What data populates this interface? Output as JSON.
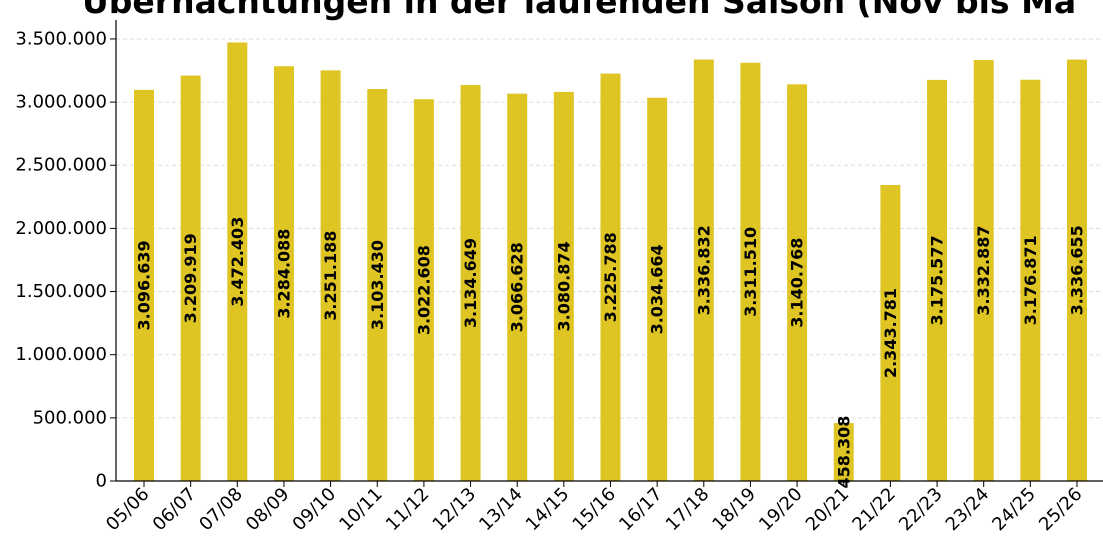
{
  "chart_data": {
    "type": "bar",
    "title": "Übernachtungen in der laufenden Saison (Nov bis Ma",
    "xlabel": "",
    "ylabel": "",
    "categories": [
      "05/06",
      "06/07",
      "07/08",
      "08/09",
      "09/10",
      "10/11",
      "11/12",
      "12/13",
      "13/14",
      "14/15",
      "15/16",
      "16/17",
      "17/18",
      "18/19",
      "19/20",
      "20/21",
      "21/22",
      "22/23",
      "23/24",
      "24/25",
      "25/26"
    ],
    "values": [
      3096639,
      3209919,
      3472403,
      3284088,
      3251188,
      3103430,
      3022608,
      3134649,
      3066628,
      3080874,
      3225788,
      3034664,
      3336832,
      3311510,
      3140768,
      458308,
      2343781,
      3175577,
      3332887,
      3176871,
      3336655
    ],
    "value_labels": [
      "3.096.639",
      "3.209.919",
      "3.472.403",
      "3.284.088",
      "3.251.188",
      "3.103.430",
      "3.022.608",
      "3.134.649",
      "3.066.628",
      "3.080.874",
      "3.225.788",
      "3.034.664",
      "3.336.832",
      "3.311.510",
      "3.140.768",
      "458.308",
      "2.343.781",
      "3.175.577",
      "3.332.887",
      "3.176.871",
      "3.336.655"
    ],
    "ylim": [
      0,
      3650000
    ],
    "yticks": [
      0,
      500000,
      1000000,
      1500000,
      2000000,
      2500000,
      3000000,
      3500000
    ],
    "ytick_labels": [
      "0",
      "500.000",
      "1.000.000",
      "1.500.000",
      "2.000.000",
      "2.500.000",
      "3.000.000",
      "3.500.000"
    ],
    "grid": "horizontal dashed",
    "bar_color": "#dfc523",
    "grid_color": "#dddddd"
  }
}
